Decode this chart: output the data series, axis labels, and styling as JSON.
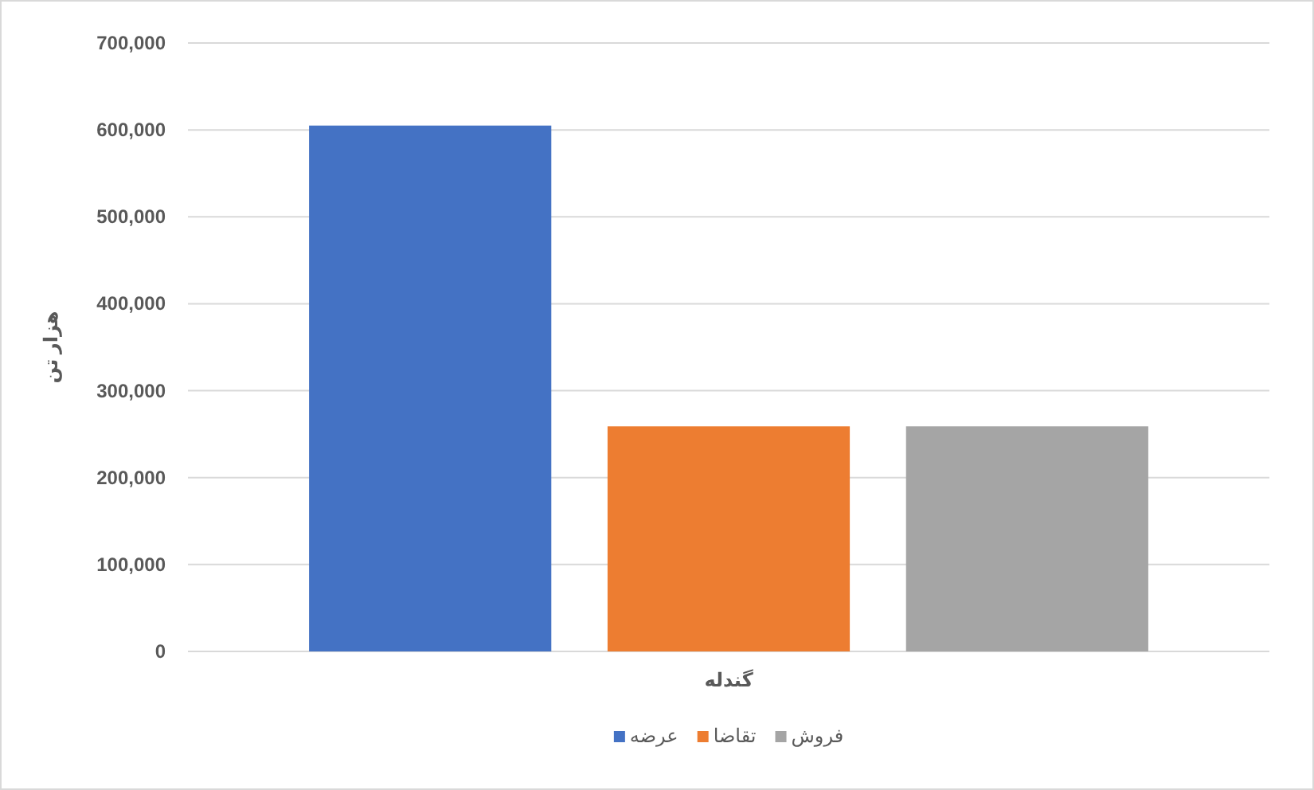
{
  "chart_data": {
    "type": "bar",
    "ylabel": "هزار تن",
    "categories": [
      "گندله"
    ],
    "series": [
      {
        "name": "عرضه",
        "color": "#4472c4",
        "values": [
          605000
        ]
      },
      {
        "name": "تقاضا",
        "color": "#ed7d31",
        "values": [
          259000
        ]
      },
      {
        "name": "فروش",
        "color": "#a5a5a5",
        "values": [
          259000
        ]
      }
    ],
    "ylim": [
      0,
      700000
    ],
    "yticks": [
      {
        "value": 0,
        "label": "0"
      },
      {
        "value": 100000,
        "label": "100,000"
      },
      {
        "value": 200000,
        "label": "200,000"
      },
      {
        "value": 300000,
        "label": "300,000"
      },
      {
        "value": 400000,
        "label": "400,000"
      },
      {
        "value": 500000,
        "label": "500,000"
      },
      {
        "value": 600000,
        "label": "600,000"
      },
      {
        "value": 700000,
        "label": "700,000"
      }
    ],
    "grid": "y",
    "legend": "bottom"
  }
}
